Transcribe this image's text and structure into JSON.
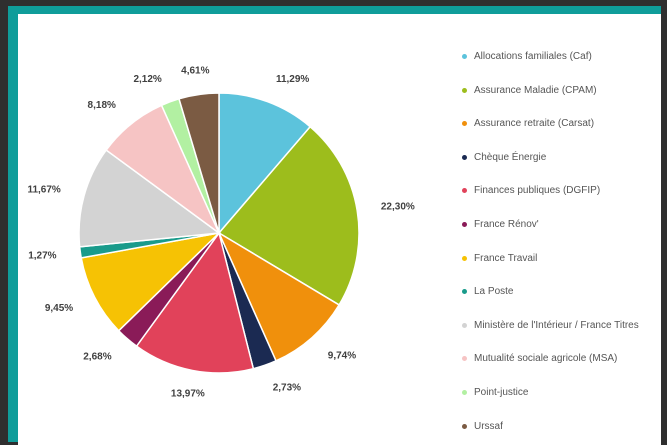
{
  "chart_data": {
    "type": "pie",
    "categories": [
      "Allocations familiales (Caf)",
      "Assurance Maladie (CPAM)",
      "Assurance retraite (Carsat)",
      "Chèque Énergie",
      "Finances publiques (DGFIP)",
      "France Rénov'",
      "France Travail",
      "La Poste",
      "Ministère de l'Intérieur / France Titres",
      "Mutualité sociale agricole (MSA)",
      "Point-justice",
      "Urssaf"
    ],
    "values": [
      11.29,
      22.3,
      9.74,
      2.73,
      13.97,
      2.68,
      9.45,
      1.27,
      11.67,
      8.18,
      2.12,
      4.61
    ],
    "value_labels": [
      "11,29%",
      "22,30%",
      "9,74%",
      "2,73%",
      "13,97%",
      "2,68%",
      "9,45%",
      "1,27%",
      "11,67%",
      "8,18%",
      "2,12%",
      "4,61%"
    ],
    "colors": [
      "#5cc3dc",
      "#9dbd1c",
      "#f0900c",
      "#1b2a52",
      "#e1425a",
      "#8a1b58",
      "#f6c204",
      "#199b8b",
      "#d3d3d3",
      "#f6c4c4",
      "#b2f0a2",
      "#7b5b43"
    ],
    "legend": "right"
  }
}
